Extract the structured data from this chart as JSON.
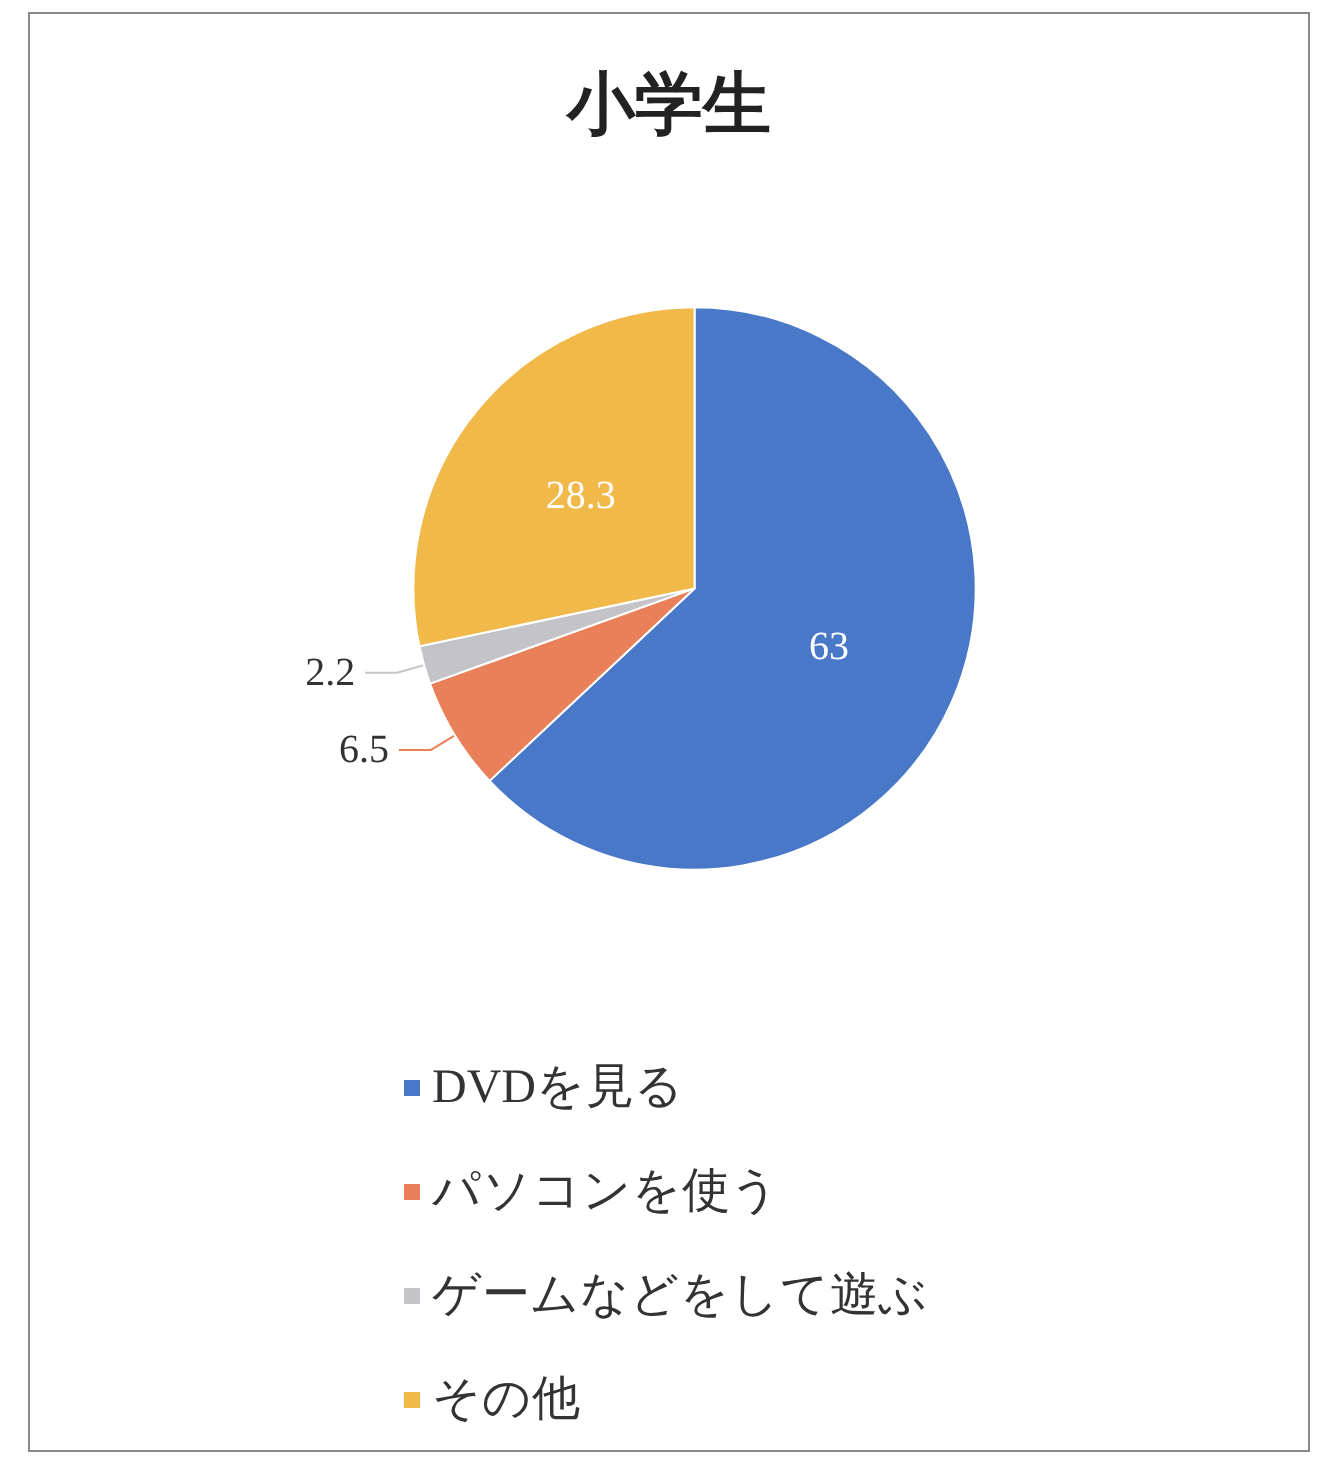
{
  "chart_data": {
    "type": "pie",
    "title": "小学生",
    "categories": [
      "DVDを見る",
      "パソコンを使う",
      "ゲームなどをして遊ぶ",
      "その他"
    ],
    "values": [
      63,
      6.5,
      2.2,
      28.3
    ],
    "colors": [
      "#4a78c8",
      "#e9805a",
      "#c4c4c8",
      "#f0b94a"
    ],
    "data_labels": true,
    "legend": "bottom"
  }
}
